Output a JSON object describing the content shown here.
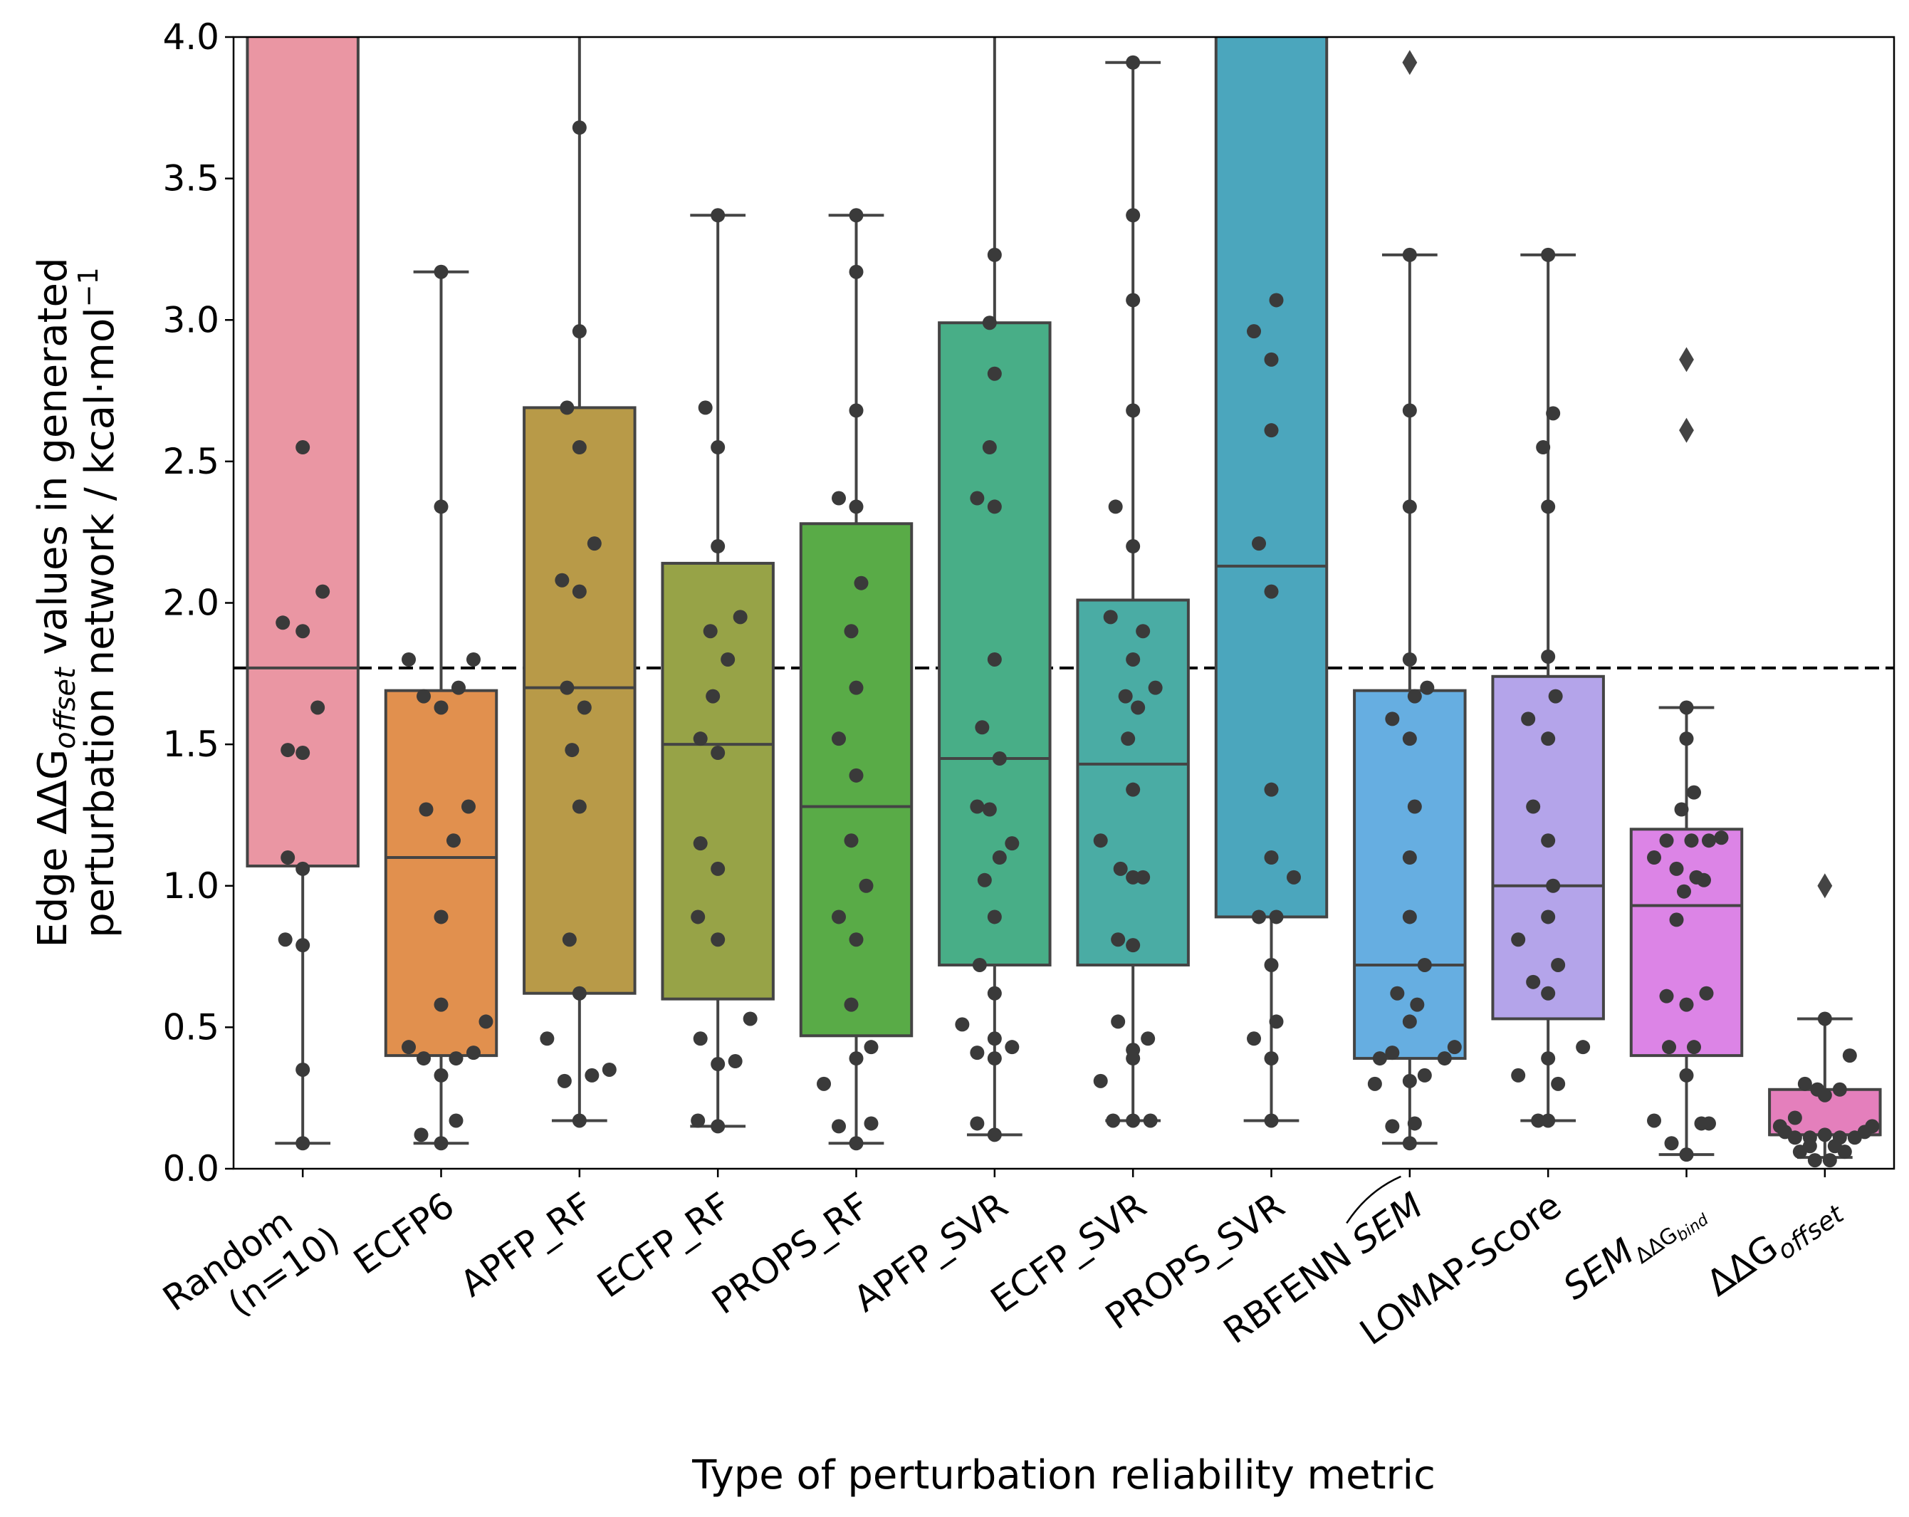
{
  "chart_data": {
    "type": "box",
    "xlabel": "Type of perturbation reliability metric",
    "ylabel_line1": "Edge ΔΔG",
    "ylabel_sub": "offset",
    "ylabel_line1_rest": " values in generated",
    "ylabel_line2": "perturbation network / kcal·mol",
    "ylabel_sup": "−1",
    "ylim": [
      0,
      4
    ],
    "yticks": [
      0.0,
      0.5,
      1.0,
      1.5,
      2.0,
      2.5,
      3.0,
      3.5,
      4.0
    ],
    "ytick_labels": [
      "0.0",
      "0.5",
      "1.0",
      "1.5",
      "2.0",
      "2.5",
      "3.0",
      "3.5",
      "4.0"
    ],
    "reference_line": {
      "y": 1.77,
      "style": "dashed",
      "color": "#000000"
    },
    "point_color": "#3a3a3a",
    "box_edge_color": "#444444",
    "categories": [
      {
        "label": "Random\n(n=10)",
        "color": "#ea96a3",
        "q1": 1.07,
        "median": 1.77,
        "q3": 4.6,
        "whisker_low": 0.09,
        "whisker_high": 4.6,
        "fliers": [],
        "points": [
          [
            0,
            2.55
          ],
          [
            0.4,
            2.04
          ],
          [
            -0.4,
            1.93
          ],
          [
            0,
            1.9
          ],
          [
            0.3,
            1.63
          ],
          [
            -0.3,
            1.48
          ],
          [
            0,
            1.47
          ],
          [
            -0.3,
            1.1
          ],
          [
            0,
            1.06
          ],
          [
            -0.35,
            0.81
          ],
          [
            0,
            0.79
          ],
          [
            0,
            0.35
          ],
          [
            0,
            0.09
          ]
        ]
      },
      {
        "label": "ECFP6",
        "color": "#e1904e",
        "q1": 0.4,
        "median": 1.1,
        "q3": 1.69,
        "whisker_low": 0.09,
        "whisker_high": 3.17,
        "fliers": [],
        "points": [
          [
            0,
            3.17
          ],
          [
            0,
            2.34
          ],
          [
            -0.65,
            1.8
          ],
          [
            0.65,
            1.8
          ],
          [
            -0.35,
            1.67
          ],
          [
            0.35,
            1.7
          ],
          [
            0,
            1.63
          ],
          [
            -0.3,
            1.27
          ],
          [
            0.55,
            1.28
          ],
          [
            0.25,
            1.16
          ],
          [
            0,
            0.89
          ],
          [
            0,
            0.58
          ],
          [
            0.9,
            0.52
          ],
          [
            -0.65,
            0.43
          ],
          [
            -0.35,
            0.39
          ],
          [
            0.3,
            0.39
          ],
          [
            0.65,
            0.41
          ],
          [
            0,
            0.33
          ],
          [
            0.3,
            0.17
          ],
          [
            -0.4,
            0.12
          ],
          [
            0,
            0.09
          ]
        ]
      },
      {
        "label": "APFP_RF",
        "color": "#b89a48",
        "q1": 0.62,
        "median": 1.7,
        "q3": 2.69,
        "whisker_low": 0.17,
        "whisker_high": 4.6,
        "fliers": [],
        "points": [
          [
            0,
            3.68
          ],
          [
            0,
            2.96
          ],
          [
            -0.25,
            2.69
          ],
          [
            0,
            2.55
          ],
          [
            0.3,
            2.21
          ],
          [
            -0.35,
            2.08
          ],
          [
            0,
            2.04
          ],
          [
            -0.25,
            1.7
          ],
          [
            0.1,
            1.63
          ],
          [
            -0.15,
            1.48
          ],
          [
            0,
            1.28
          ],
          [
            -0.2,
            0.81
          ],
          [
            0,
            0.62
          ],
          [
            -0.65,
            0.46
          ],
          [
            -0.3,
            0.31
          ],
          [
            0.25,
            0.33
          ],
          [
            0.6,
            0.35
          ],
          [
            0,
            0.17
          ]
        ]
      },
      {
        "label": "ECFP_RF",
        "color": "#97a347",
        "q1": 0.6,
        "median": 1.5,
        "q3": 2.14,
        "whisker_low": 0.15,
        "whisker_high": 3.37,
        "fliers": [],
        "points": [
          [
            0,
            3.37
          ],
          [
            -0.25,
            2.69
          ],
          [
            0,
            2.55
          ],
          [
            0,
            2.2
          ],
          [
            0.45,
            1.95
          ],
          [
            -0.15,
            1.9
          ],
          [
            0.2,
            1.8
          ],
          [
            -0.1,
            1.67
          ],
          [
            -0.35,
            1.52
          ],
          [
            0,
            1.47
          ],
          [
            -0.35,
            1.15
          ],
          [
            0,
            1.06
          ],
          [
            -0.4,
            0.89
          ],
          [
            0,
            0.81
          ],
          [
            0.65,
            0.53
          ],
          [
            -0.35,
            0.46
          ],
          [
            0,
            0.37
          ],
          [
            0.35,
            0.38
          ],
          [
            -0.4,
            0.17
          ],
          [
            0,
            0.15
          ]
        ]
      },
      {
        "label": "PROPS_RF",
        "color": "#59ab47",
        "q1": 0.47,
        "median": 1.28,
        "q3": 2.28,
        "whisker_low": 0.09,
        "whisker_high": 3.37,
        "fliers": [],
        "points": [
          [
            0,
            3.37
          ],
          [
            0,
            3.17
          ],
          [
            0,
            2.68
          ],
          [
            -0.35,
            2.37
          ],
          [
            0,
            2.34
          ],
          [
            0.1,
            2.07
          ],
          [
            -0.1,
            1.9
          ],
          [
            0,
            1.7
          ],
          [
            -0.35,
            1.52
          ],
          [
            0,
            1.39
          ],
          [
            -0.1,
            1.16
          ],
          [
            0.2,
            1.0
          ],
          [
            -0.35,
            0.89
          ],
          [
            0,
            0.81
          ],
          [
            -0.1,
            0.58
          ],
          [
            0.3,
            0.43
          ],
          [
            0,
            0.39
          ],
          [
            -0.65,
            0.3
          ],
          [
            -0.35,
            0.15
          ],
          [
            0.3,
            0.16
          ],
          [
            0,
            0.09
          ]
        ]
      },
      {
        "label": "APFP_SVR",
        "color": "#48ae87",
        "q1": 0.72,
        "median": 1.45,
        "q3": 2.99,
        "whisker_low": 0.12,
        "whisker_high": 4.6,
        "fliers": [],
        "points": [
          [
            0,
            3.23
          ],
          [
            -0.1,
            2.99
          ],
          [
            0,
            2.81
          ],
          [
            -0.1,
            2.55
          ],
          [
            -0.35,
            2.37
          ],
          [
            0,
            2.34
          ],
          [
            0,
            1.8
          ],
          [
            -0.25,
            1.56
          ],
          [
            0.1,
            1.45
          ],
          [
            -0.35,
            1.28
          ],
          [
            -0.1,
            1.27
          ],
          [
            0.35,
            1.15
          ],
          [
            0.1,
            1.1
          ],
          [
            -0.2,
            1.02
          ],
          [
            0,
            0.89
          ],
          [
            -0.3,
            0.72
          ],
          [
            0,
            0.62
          ],
          [
            -0.65,
            0.51
          ],
          [
            0,
            0.46
          ],
          [
            -0.35,
            0.41
          ],
          [
            0.35,
            0.43
          ],
          [
            0,
            0.39
          ],
          [
            -0.35,
            0.16
          ],
          [
            0,
            0.12
          ]
        ]
      },
      {
        "label": "ECFP_SVR",
        "color": "#4aaca4",
        "q1": 0.72,
        "median": 1.43,
        "q3": 2.01,
        "whisker_low": 0.17,
        "whisker_high": 3.91,
        "fliers": [],
        "points": [
          [
            0,
            3.91
          ],
          [
            0,
            3.37
          ],
          [
            0,
            3.07
          ],
          [
            0,
            2.68
          ],
          [
            -0.35,
            2.34
          ],
          [
            0,
            2.2
          ],
          [
            -0.45,
            1.95
          ],
          [
            0.2,
            1.9
          ],
          [
            0,
            1.8
          ],
          [
            0.45,
            1.7
          ],
          [
            -0.15,
            1.67
          ],
          [
            0.1,
            1.63
          ],
          [
            -0.1,
            1.52
          ],
          [
            0,
            1.34
          ],
          [
            -0.65,
            1.16
          ],
          [
            -0.25,
            1.06
          ],
          [
            0,
            1.03
          ],
          [
            0.2,
            1.03
          ],
          [
            -0.3,
            0.81
          ],
          [
            0,
            0.79
          ],
          [
            -0.3,
            0.52
          ],
          [
            0,
            0.42
          ],
          [
            0.3,
            0.46
          ],
          [
            -0.65,
            0.31
          ],
          [
            0,
            0.39
          ],
          [
            -0.4,
            0.17
          ],
          [
            0,
            0.17
          ],
          [
            0.35,
            0.17
          ]
        ]
      },
      {
        "label": "PROPS_SVR",
        "color": "#4ba6bd",
        "q1": 0.89,
        "median": 2.13,
        "q3": 4.6,
        "whisker_low": 0.17,
        "whisker_high": 4.6,
        "fliers": [],
        "points": [
          [
            0.1,
            3.07
          ],
          [
            -0.35,
            2.96
          ],
          [
            0,
            2.86
          ],
          [
            0,
            2.61
          ],
          [
            -0.25,
            2.21
          ],
          [
            0,
            2.04
          ],
          [
            0,
            1.34
          ],
          [
            0,
            1.1
          ],
          [
            0.45,
            1.03
          ],
          [
            -0.25,
            0.89
          ],
          [
            0.1,
            0.89
          ],
          [
            0,
            0.72
          ],
          [
            0.1,
            0.52
          ],
          [
            -0.35,
            0.46
          ],
          [
            0,
            0.39
          ],
          [
            0,
            0.17
          ]
        ]
      },
      {
        "label": "RBFENN SEM",
        "color": "#66aee1",
        "q1": 0.39,
        "median": 0.72,
        "q3": 1.69,
        "whisker_low": 0.09,
        "whisker_high": 3.23,
        "fliers": [
          3.91
        ],
        "points": [
          [
            0,
            3.23
          ],
          [
            0,
            2.68
          ],
          [
            0,
            2.34
          ],
          [
            0,
            1.8
          ],
          [
            0.35,
            1.7
          ],
          [
            0.1,
            1.67
          ],
          [
            -0.35,
            1.59
          ],
          [
            0,
            1.52
          ],
          [
            0.1,
            1.28
          ],
          [
            0,
            1.1
          ],
          [
            0,
            0.89
          ],
          [
            0.3,
            0.72
          ],
          [
            -0.25,
            0.62
          ],
          [
            0.15,
            0.58
          ],
          [
            0,
            0.52
          ],
          [
            0.9,
            0.43
          ],
          [
            -0.35,
            0.41
          ],
          [
            -0.6,
            0.39
          ],
          [
            0.7,
            0.39
          ],
          [
            -0.7,
            0.3
          ],
          [
            0,
            0.31
          ],
          [
            0.3,
            0.33
          ],
          [
            -0.35,
            0.15
          ],
          [
            0.1,
            0.16
          ],
          [
            0,
            0.09
          ]
        ]
      },
      {
        "label": "LOMAP-Score",
        "color": "#b4a4ea",
        "q1": 0.53,
        "median": 1.0,
        "q3": 1.74,
        "whisker_low": 0.17,
        "whisker_high": 3.23,
        "fliers": [],
        "points": [
          [
            0,
            3.23
          ],
          [
            0.1,
            2.67
          ],
          [
            -0.1,
            2.55
          ],
          [
            0,
            2.34
          ],
          [
            0,
            1.81
          ],
          [
            0.15,
            1.67
          ],
          [
            -0.4,
            1.59
          ],
          [
            0,
            1.52
          ],
          [
            -0.3,
            1.28
          ],
          [
            0,
            1.16
          ],
          [
            0.1,
            1.0
          ],
          [
            0,
            0.89
          ],
          [
            -0.6,
            0.81
          ],
          [
            0.2,
            0.72
          ],
          [
            -0.3,
            0.66
          ],
          [
            0,
            0.62
          ],
          [
            0.7,
            0.43
          ],
          [
            0,
            0.39
          ],
          [
            -0.6,
            0.33
          ],
          [
            0.2,
            0.3
          ],
          [
            -0.2,
            0.17
          ],
          [
            0,
            0.17
          ]
        ]
      },
      {
        "label": "SEM ΔΔG bind",
        "color": "#dc84e6",
        "q1": 0.4,
        "median": 0.93,
        "q3": 1.2,
        "whisker_low": 0.05,
        "whisker_high": 1.63,
        "fliers": [
          2.86,
          2.61
        ],
        "points": [
          [
            0,
            1.63
          ],
          [
            0,
            1.52
          ],
          [
            0.15,
            1.33
          ],
          [
            -0.1,
            1.27
          ],
          [
            -0.4,
            1.16
          ],
          [
            0.1,
            1.16
          ],
          [
            0.45,
            1.16
          ],
          [
            0.7,
            1.17
          ],
          [
            -0.65,
            1.1
          ],
          [
            -0.2,
            1.06
          ],
          [
            0.2,
            1.03
          ],
          [
            0.35,
            1.02
          ],
          [
            -0.05,
            0.98
          ],
          [
            -0.2,
            0.88
          ],
          [
            -0.4,
            0.61
          ],
          [
            0.4,
            0.62
          ],
          [
            0,
            0.58
          ],
          [
            -0.35,
            0.43
          ],
          [
            0.15,
            0.43
          ],
          [
            0,
            0.33
          ],
          [
            -0.65,
            0.17
          ],
          [
            -0.3,
            0.09
          ],
          [
            0.3,
            0.16
          ],
          [
            0.45,
            0.16
          ],
          [
            0,
            0.05
          ]
        ]
      },
      {
        "label": "ΔΔG offset",
        "color": "#e47fbc",
        "q1": 0.12,
        "median": 0.12,
        "q3": 0.28,
        "whisker_low": 0.04,
        "whisker_high": 0.53,
        "fliers": [
          1.0
        ],
        "points": [
          [
            0,
            0.53
          ],
          [
            0.5,
            0.4
          ],
          [
            -0.4,
            0.3
          ],
          [
            0.3,
            0.28
          ],
          [
            -0.15,
            0.28
          ],
          [
            0,
            0.26
          ],
          [
            -0.6,
            0.18
          ],
          [
            -0.9,
            0.15
          ],
          [
            0.95,
            0.15
          ],
          [
            -0.8,
            0.13
          ],
          [
            0.8,
            0.13
          ],
          [
            -0.6,
            0.11
          ],
          [
            -0.3,
            0.11
          ],
          [
            0,
            0.12
          ],
          [
            0.3,
            0.11
          ],
          [
            0.6,
            0.11
          ],
          [
            -0.3,
            0.08
          ],
          [
            0.2,
            0.08
          ],
          [
            -0.5,
            0.06
          ],
          [
            0.4,
            0.06
          ],
          [
            -0.2,
            0.03
          ],
          [
            0.1,
            0.03
          ]
        ]
      }
    ]
  }
}
